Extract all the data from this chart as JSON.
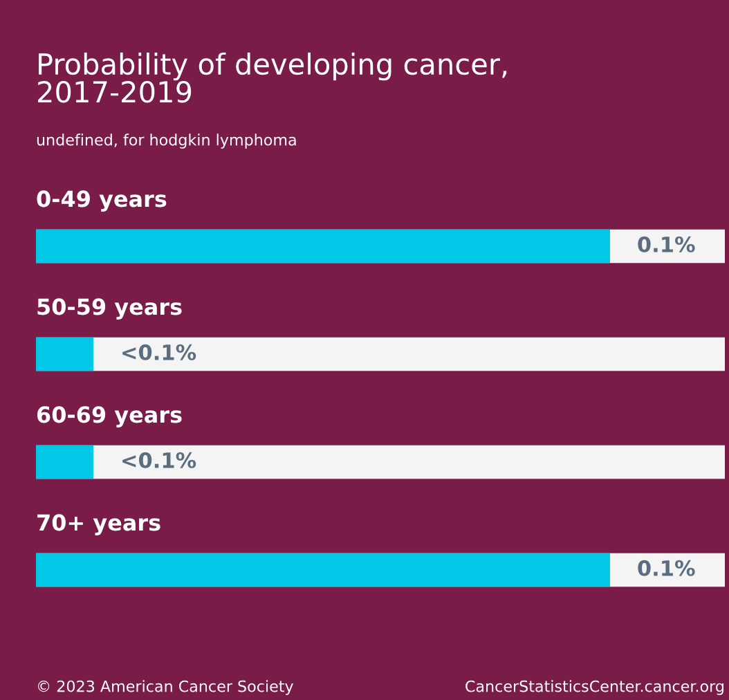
{
  "chart_data": {
    "type": "bar",
    "orientation": "horizontal",
    "xlim": [
      0,
      0.12
    ],
    "title": "Probability of developing cancer,\n2017-2019",
    "subtitle": "undefined, for hodgkin lymphoma",
    "categories": [
      "0-49 years",
      "50-59 years",
      "60-69 years",
      "70+ years"
    ],
    "values": [
      0.1,
      0.01,
      0.01,
      0.1
    ],
    "value_labels": [
      "0.1%",
      "<0.1%",
      "<0.1%",
      "0.1%"
    ],
    "color": "#00c8e6",
    "annotations": [
      "© 2023 American Cancer Society",
      "CancerStatisticsCenter.cancer.org"
    ]
  }
}
